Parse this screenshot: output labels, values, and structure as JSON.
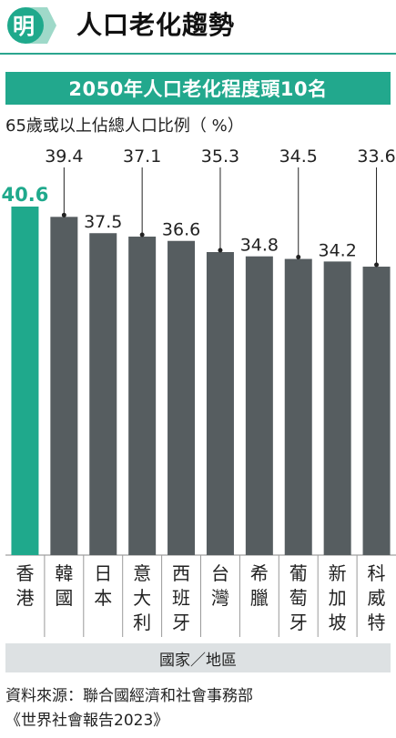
{
  "header": {
    "logo_char": "明",
    "title": "人口老化趨勢"
  },
  "colors": {
    "highlight": "#1fa98c",
    "bar": "#565d60",
    "accent": "#22a88d"
  },
  "chart_data": {
    "type": "bar",
    "title": "2050年人口老化程度頭10名",
    "ylabel": "65歲或以上佔總人口比例（ %）",
    "xlabel": "國家／地區",
    "categories": [
      "香港",
      "韓國",
      "日本",
      "意大利",
      "西班牙",
      "台灣",
      "希臘",
      "葡萄牙",
      "新加坡",
      "科威特"
    ],
    "values": [
      40.6,
      39.4,
      37.5,
      37.1,
      36.6,
      35.3,
      34.8,
      34.5,
      34.2,
      33.6
    ],
    "highlight_index": 0,
    "elevated_label_indices": [
      1,
      3,
      5,
      7,
      9
    ],
    "ylim": [
      0,
      40.6
    ],
    "grid": false,
    "legend": "none"
  },
  "source": {
    "line1": "資料來源：聯合國經濟和社會事務部",
    "line2": "《世界社會報告2023》"
  }
}
